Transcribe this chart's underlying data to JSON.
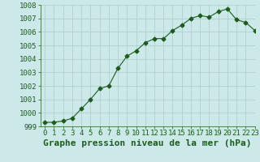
{
  "x": [
    0,
    1,
    2,
    3,
    4,
    5,
    6,
    7,
    8,
    9,
    10,
    11,
    12,
    13,
    14,
    15,
    16,
    17,
    18,
    19,
    20,
    21,
    22,
    23
  ],
  "y": [
    999.3,
    999.3,
    999.4,
    999.6,
    1000.3,
    1001.0,
    1001.8,
    1002.0,
    1003.3,
    1004.2,
    1004.6,
    1005.2,
    1005.5,
    1005.5,
    1006.1,
    1006.5,
    1007.0,
    1007.2,
    1007.1,
    1007.5,
    1007.7,
    1006.9,
    1006.7,
    1006.1
  ],
  "line_color": "#1a5e1a",
  "marker": "D",
  "marker_size": 2.5,
  "bg_color": "#cce8e8",
  "grid_color": "#aacccc",
  "xlabel": "Graphe pression niveau de la mer (hPa)",
  "xlabel_fontsize": 8,
  "ylim": [
    999,
    1008
  ],
  "xlim": [
    -0.5,
    23
  ],
  "yticks": [
    999,
    1000,
    1001,
    1002,
    1003,
    1004,
    1005,
    1006,
    1007,
    1008
  ],
  "xticks": [
    0,
    1,
    2,
    3,
    4,
    5,
    6,
    7,
    8,
    9,
    10,
    11,
    12,
    13,
    14,
    15,
    16,
    17,
    18,
    19,
    20,
    21,
    22,
    23
  ],
  "tick_fontsize": 6.5,
  "axis_color": "#1a5e1a"
}
